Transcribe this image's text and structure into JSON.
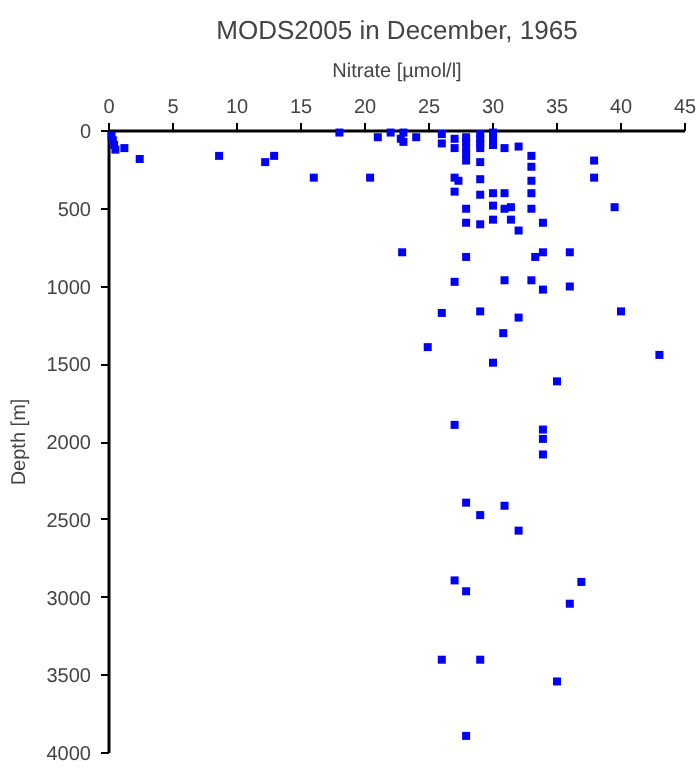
{
  "chart_data": {
    "type": "scatter",
    "title": "MODS2005 in December, 1965",
    "xlabel": "Nitrate [µmol/l]",
    "ylabel": "Depth [m]",
    "xlim": [
      0,
      45
    ],
    "xticks": [
      0,
      5,
      10,
      15,
      20,
      25,
      30,
      35,
      40,
      45
    ],
    "ylim": [
      4000,
      0
    ],
    "yticks": [
      0,
      500,
      1000,
      1500,
      2000,
      2500,
      3000,
      3500,
      4000
    ],
    "grid": false,
    "marker": "square",
    "series": [
      {
        "color": "#0000ff",
        "x": [
          0.2,
          0.3,
          0.4,
          0.5,
          1.2,
          2.4,
          8.6,
          12.2,
          12.9,
          16.0,
          18.0,
          20.4,
          21.0,
          22.0,
          22.8,
          22.9,
          23.0,
          23.0,
          24.0,
          26.0,
          26.0,
          27.0,
          27.0,
          27.9,
          27.9,
          27.9,
          27.9,
          27.9,
          29.0,
          29.0,
          29.0,
          29.0,
          29.0,
          29.0,
          29.0,
          29.0,
          29.0,
          30.0,
          30.0,
          30.0,
          30.0,
          30.0,
          30.0,
          30.0,
          30.9,
          30.9,
          30.9,
          30.9,
          32.0,
          32.0,
          32.0,
          27.0,
          27.0,
          27.0,
          27.3,
          27.9,
          27.9,
          27.9,
          30.8,
          31.4,
          31.4,
          33.0,
          33.0,
          33.0,
          33.0,
          33.0,
          33.0,
          33.3,
          33.9,
          33.9,
          33.9,
          36.0,
          36.0,
          37.9,
          37.9,
          39.5,
          40.0,
          24.9,
          26.0,
          43.0,
          35.0,
          27.0,
          33.9,
          33.9,
          33.9,
          27.9,
          30.9,
          29.0,
          32.0,
          27.0,
          27.9,
          36.9,
          36.0,
          26.0,
          29.0,
          35.0,
          27.9
        ],
        "values": [
          30,
          60,
          90,
          120,
          110,
          180,
          160,
          200,
          160,
          300,
          10,
          300,
          40,
          10,
          50,
          780,
          10,
          70,
          40,
          20,
          80,
          50,
          110,
          40,
          70,
          110,
          150,
          190,
          20,
          50,
          80,
          110,
          200,
          310,
          410,
          600,
          1160,
          10,
          50,
          90,
          400,
          480,
          570,
          1490,
          110,
          400,
          500,
          960,
          100,
          640,
          1200,
          300,
          390,
          970,
          320,
          500,
          590,
          810,
          1300,
          490,
          570,
          160,
          230,
          320,
          400,
          500,
          960,
          810,
          590,
          780,
          1020,
          780,
          1000,
          190,
          300,
          490,
          1160,
          1390,
          1170,
          1440,
          1610,
          1890,
          1920,
          1980,
          2080,
          2390,
          2410,
          2470,
          2570,
          2890,
          2960,
          2900,
          3040,
          3400,
          3400,
          3540,
          3890
        ]
      }
    ]
  }
}
